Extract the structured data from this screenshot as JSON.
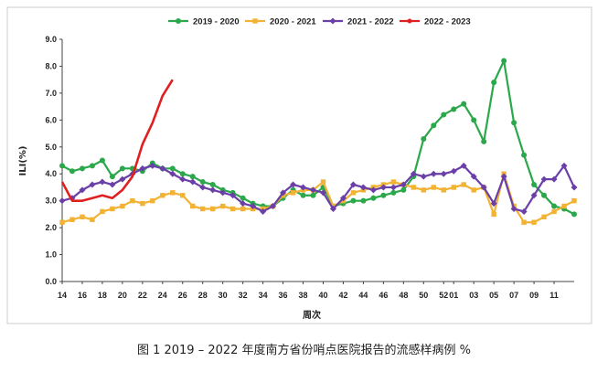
{
  "caption": "图 1 2019 – 2022 年度南方省份哨点医院报告的流感样病例 %",
  "chart_data": {
    "type": "line",
    "xlabel": "周次",
    "ylabel": "ILI(%)",
    "ylim": [
      0,
      9
    ],
    "yticks": [
      "0.0",
      "1.0",
      "2.0",
      "3.0",
      "4.0",
      "5.0",
      "6.0",
      "7.0",
      "8.0",
      "9.0"
    ],
    "grid": false,
    "legend_position": "top-right",
    "x": [
      "14",
      "15",
      "16",
      "17",
      "18",
      "19",
      "20",
      "21",
      "22",
      "23",
      "24",
      "25",
      "26",
      "27",
      "28",
      "29",
      "30",
      "31",
      "32",
      "33",
      "34",
      "35",
      "36",
      "37",
      "38",
      "39",
      "40",
      "41",
      "42",
      "43",
      "44",
      "45",
      "46",
      "47",
      "48",
      "49",
      "50",
      "51",
      "52",
      "01",
      "02",
      "03",
      "04",
      "05",
      "06",
      "07",
      "08",
      "09",
      "10",
      "11",
      "12",
      "13"
    ],
    "x_tick_labels": [
      "14",
      "16",
      "18",
      "20",
      "22",
      "24",
      "26",
      "28",
      "30",
      "32",
      "34",
      "36",
      "38",
      "40",
      "42",
      "44",
      "46",
      "48",
      "50",
      "52",
      "01",
      "03",
      "05",
      "07",
      "09",
      "11"
    ],
    "series": [
      {
        "name": "2019 - 2020",
        "color": "#2aa84a",
        "marker": "circle",
        "values": [
          4.3,
          4.1,
          4.2,
          4.3,
          4.5,
          3.9,
          4.2,
          4.2,
          4.1,
          4.4,
          4.2,
          4.2,
          4.0,
          3.9,
          3.7,
          3.6,
          3.4,
          3.3,
          3.1,
          2.9,
          2.8,
          2.8,
          3.1,
          3.4,
          3.2,
          3.2,
          3.5,
          2.8,
          2.9,
          3.0,
          3.0,
          3.1,
          3.2,
          3.3,
          3.4,
          3.9,
          5.3,
          5.8,
          6.2,
          6.4,
          6.6,
          6.0,
          5.2,
          7.4,
          8.2,
          5.9,
          4.7,
          3.6,
          3.2,
          2.8,
          2.7,
          2.5
        ]
      },
      {
        "name": "2020 - 2021",
        "color": "#f2b233",
        "marker": "square",
        "values": [
          2.2,
          2.3,
          2.4,
          2.3,
          2.6,
          2.7,
          2.8,
          3.0,
          2.9,
          3.0,
          3.2,
          3.3,
          3.2,
          2.8,
          2.7,
          2.7,
          2.8,
          2.7,
          2.7,
          2.7,
          2.7,
          2.8,
          3.2,
          3.3,
          3.4,
          3.4,
          3.7,
          2.8,
          3.0,
          3.3,
          3.4,
          3.5,
          3.6,
          3.7,
          3.6,
          3.5,
          3.4,
          3.5,
          3.4,
          3.5,
          3.6,
          3.4,
          3.5,
          2.5,
          4.0,
          2.8,
          2.2,
          2.2,
          2.4,
          2.6,
          2.8,
          3.0
        ]
      },
      {
        "name": "2021 - 2022",
        "color": "#6b3fa8",
        "marker": "diamond",
        "values": [
          3.0,
          3.1,
          3.4,
          3.6,
          3.7,
          3.6,
          3.8,
          4.0,
          4.2,
          4.3,
          4.2,
          4.0,
          3.8,
          3.7,
          3.5,
          3.4,
          3.3,
          3.2,
          2.9,
          2.8,
          2.6,
          2.8,
          3.3,
          3.6,
          3.5,
          3.4,
          3.3,
          2.7,
          3.1,
          3.6,
          3.5,
          3.4,
          3.5,
          3.5,
          3.6,
          4.0,
          3.9,
          4.0,
          4.0,
          4.1,
          4.3,
          3.9,
          3.5,
          2.9,
          3.9,
          2.7,
          2.6,
          3.2,
          3.8,
          3.8,
          4.3,
          3.5
        ]
      },
      {
        "name": "2022 - 2023",
        "color": "#e02020",
        "marker": "none",
        "values": [
          3.7,
          3.0,
          3.0,
          3.1,
          3.2,
          3.1,
          3.4,
          3.9,
          5.1,
          5.9,
          6.9,
          7.5,
          null,
          null,
          null,
          null,
          null,
          null,
          null,
          null,
          null,
          null,
          null,
          null,
          null,
          null,
          null,
          null,
          null,
          null,
          null,
          null,
          null,
          null,
          null,
          null,
          null,
          null,
          null,
          null,
          null,
          null,
          null,
          null,
          null,
          null,
          null,
          null,
          null,
          null,
          null,
          null
        ]
      }
    ]
  }
}
